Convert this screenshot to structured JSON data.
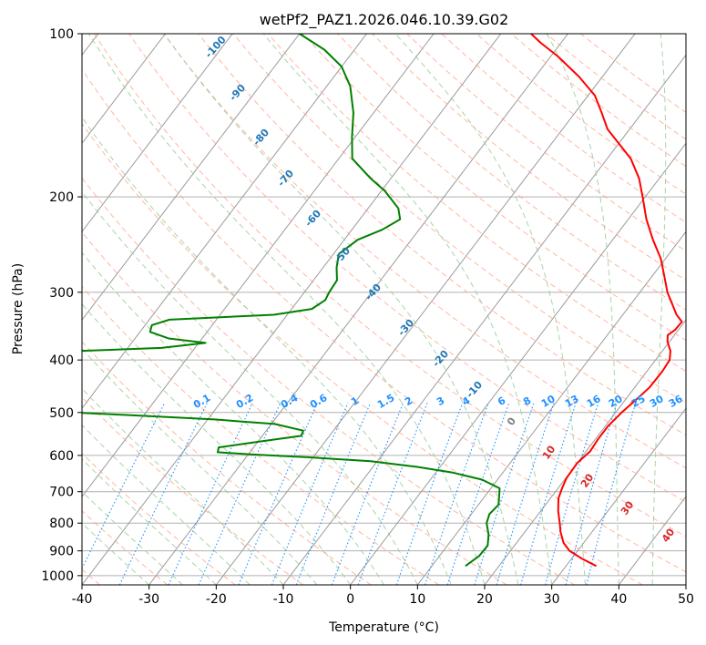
{
  "chart_data": {
    "type": "line",
    "subtype": "skew-t log-p diagram",
    "title": "wetPf2_PAZ1.2026.046.10.39.G02",
    "xlabel": "Temperature (°C)",
    "ylabel": "Pressure (hPa)",
    "xlim": [
      -40,
      50
    ],
    "ylim": [
      1040,
      100
    ],
    "y_scale": "log",
    "x_ticks": [
      -40,
      -30,
      -20,
      -10,
      0,
      10,
      20,
      30,
      40,
      50
    ],
    "y_ticks": [
      100,
      200,
      300,
      400,
      500,
      600,
      700,
      800,
      900,
      1000
    ],
    "grid": true,
    "series": [
      {
        "role": "temperature",
        "color": "#ff0000",
        "points": [
          {
            "p": 960,
            "t": 34.5
          },
          {
            "p": 930,
            "t": 31.5
          },
          {
            "p": 900,
            "t": 28.8
          },
          {
            "p": 870,
            "t": 27.0
          },
          {
            "p": 830,
            "t": 25.3
          },
          {
            "p": 800,
            "t": 24.2
          },
          {
            "p": 760,
            "t": 22.6
          },
          {
            "p": 720,
            "t": 21.2
          },
          {
            "p": 690,
            "t": 20.6
          },
          {
            "p": 660,
            "t": 20.1
          },
          {
            "p": 620,
            "t": 20.0
          },
          {
            "p": 590,
            "t": 20.6
          },
          {
            "p": 560,
            "t": 20.4
          },
          {
            "p": 530,
            "t": 20.4
          },
          {
            "p": 500,
            "t": 20.9
          },
          {
            "p": 470,
            "t": 21.7
          },
          {
            "p": 450,
            "t": 22.2
          },
          {
            "p": 420,
            "t": 22.3
          },
          {
            "p": 400,
            "t": 22.1
          },
          {
            "p": 385,
            "t": 21.2
          },
          {
            "p": 370,
            "t": 19.7
          },
          {
            "p": 360,
            "t": 19.0
          },
          {
            "p": 352,
            "t": 19.5
          },
          {
            "p": 340,
            "t": 19.6
          },
          {
            "p": 330,
            "t": 18.0
          },
          {
            "p": 315,
            "t": 16.1
          },
          {
            "p": 300,
            "t": 14.1
          },
          {
            "p": 280,
            "t": 11.8
          },
          {
            "p": 260,
            "t": 9.3
          },
          {
            "p": 240,
            "t": 6.0
          },
          {
            "p": 220,
            "t": 2.7
          },
          {
            "p": 200,
            "t": -0.4
          },
          {
            "p": 185,
            "t": -3.0
          },
          {
            "p": 170,
            "t": -6.5
          },
          {
            "p": 160,
            "t": -9.8
          },
          {
            "p": 150,
            "t": -13.3
          },
          {
            "p": 140,
            "t": -16.0
          },
          {
            "p": 130,
            "t": -19.0
          },
          {
            "p": 120,
            "t": -23.5
          },
          {
            "p": 110,
            "t": -29.0
          },
          {
            "p": 104,
            "t": -33.0
          },
          {
            "p": 100,
            "t": -35.5
          }
        ]
      },
      {
        "role": "dewpoint",
        "color": "#008000",
        "points": [
          {
            "p": 960,
            "t": 15.0
          },
          {
            "p": 920,
            "t": 15.9
          },
          {
            "p": 880,
            "t": 16.0
          },
          {
            "p": 840,
            "t": 14.9
          },
          {
            "p": 800,
            "t": 13.3
          },
          {
            "p": 770,
            "t": 12.7
          },
          {
            "p": 740,
            "t": 13.0
          },
          {
            "p": 710,
            "t": 12.0
          },
          {
            "p": 690,
            "t": 11.3
          },
          {
            "p": 665,
            "t": 7.7
          },
          {
            "p": 645,
            "t": 2.4
          },
          {
            "p": 630,
            "t": -3.4
          },
          {
            "p": 615,
            "t": -11.0
          },
          {
            "p": 605,
            "t": -20.5
          },
          {
            "p": 598,
            "t": -29.0
          },
          {
            "p": 592,
            "t": -34.8
          },
          {
            "p": 580,
            "t": -35.2
          },
          {
            "p": 565,
            "t": -29.5
          },
          {
            "p": 552,
            "t": -24.2
          },
          {
            "p": 540,
            "t": -24.5
          },
          {
            "p": 525,
            "t": -29.5
          },
          {
            "p": 515,
            "t": -39.0
          },
          {
            "p": 505,
            "t": -53.0
          },
          {
            "p": 500,
            "t": -61.0
          },
          {
            "p": 440,
            "t": -75.0
          },
          {
            "p": 400,
            "t": -82.0
          },
          {
            "p": 388,
            "t": -74.0
          },
          {
            "p": 380,
            "t": -55.0
          },
          {
            "p": 372,
            "t": -49.0
          },
          {
            "p": 365,
            "t": -55.0
          },
          {
            "p": 355,
            "t": -58.5
          },
          {
            "p": 345,
            "t": -59.0
          },
          {
            "p": 337,
            "t": -57.0
          },
          {
            "p": 330,
            "t": -42.0
          },
          {
            "p": 322,
            "t": -37.0
          },
          {
            "p": 310,
            "t": -36.0
          },
          {
            "p": 300,
            "t": -36.3
          },
          {
            "p": 285,
            "t": -36.5
          },
          {
            "p": 270,
            "t": -38.0
          },
          {
            "p": 255,
            "t": -39.2
          },
          {
            "p": 240,
            "t": -38.0
          },
          {
            "p": 230,
            "t": -35.5
          },
          {
            "p": 220,
            "t": -34.0
          },
          {
            "p": 210,
            "t": -35.5
          },
          {
            "p": 195,
            "t": -39.5
          },
          {
            "p": 185,
            "t": -43.0
          },
          {
            "p": 170,
            "t": -48.0
          },
          {
            "p": 155,
            "t": -50.5
          },
          {
            "p": 140,
            "t": -53.0
          },
          {
            "p": 125,
            "t": -56.5
          },
          {
            "p": 115,
            "t": -60.0
          },
          {
            "p": 107,
            "t": -64.5
          },
          {
            "p": 100,
            "t": -70.0
          }
        ]
      }
    ],
    "dry_adiabats": [
      -100,
      -90,
      -80,
      -70,
      -60,
      -50,
      -40,
      -30,
      -20,
      -10
    ],
    "moist_adiabats": [
      0,
      10,
      20,
      30,
      40
    ],
    "mixing_ratios": [
      "0.1",
      "0.2",
      "0.4",
      "0.6",
      "1",
      "1.5",
      "2",
      "3",
      "4",
      "6",
      "8",
      "10",
      "13",
      "16",
      "20",
      "25",
      "30",
      "36"
    ],
    "colors": {
      "temperature": "#ff0000",
      "dewpoint": "#008000",
      "isotherm": "#9a9a9a",
      "isobar": "#b0b0b0",
      "dry_adiabat": "#ff9f80",
      "moist_adiabat": "#99cc99",
      "mixing_ratio": "#1e90ff",
      "dry_adiabat_label": "#1f77b4",
      "moist_adiabat_label": "#d62728",
      "zero_label": "#808080",
      "mixing_label": "#1e90ff"
    }
  }
}
